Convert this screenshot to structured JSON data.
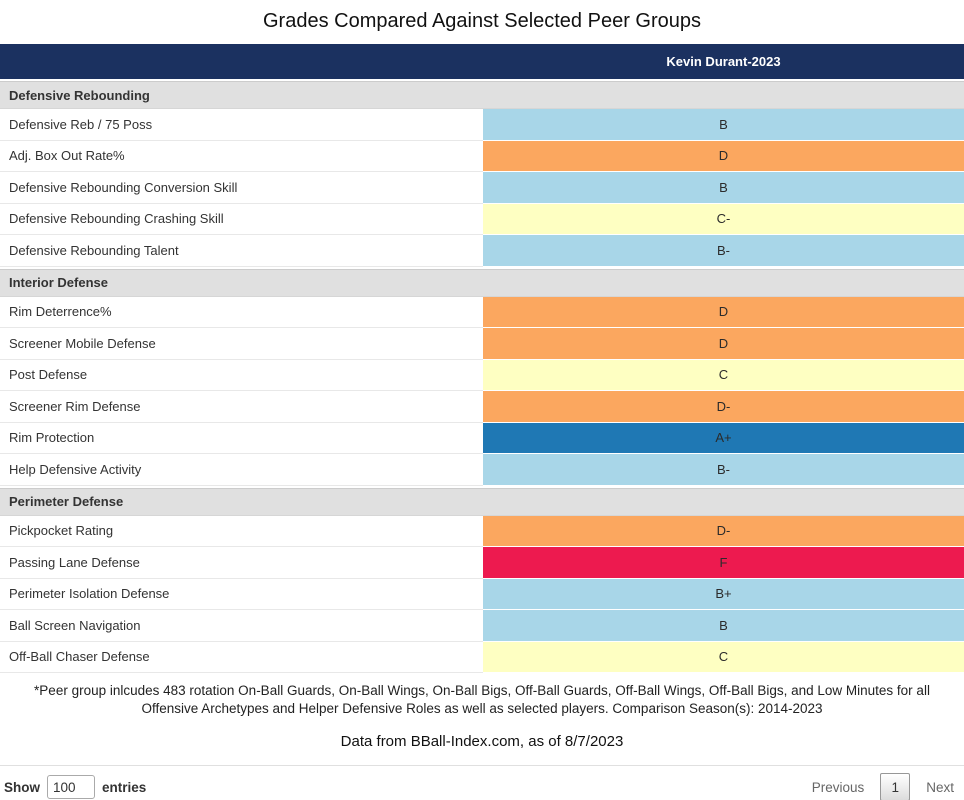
{
  "title": "Grades Compared Against Selected Peer Groups",
  "table": {
    "column_header": "Kevin Durant-2023",
    "sections": [
      {
        "label": "Defensive Rebounding",
        "rows": [
          {
            "label": "Defensive Reb / 75 Poss",
            "grade": "B",
            "color": "#a8d6e8"
          },
          {
            "label": "Adj. Box Out Rate%",
            "grade": "D",
            "color": "#fba75f"
          },
          {
            "label": "Defensive Rebounding Conversion Skill",
            "grade": "B",
            "color": "#a8d6e8"
          },
          {
            "label": "Defensive Rebounding Crashing Skill",
            "grade": "C-",
            "color": "#feffc2"
          },
          {
            "label": "Defensive Rebounding Talent",
            "grade": "B-",
            "color": "#a8d6e8"
          }
        ]
      },
      {
        "label": "Interior Defense",
        "rows": [
          {
            "label": "Rim Deterrence%",
            "grade": "D",
            "color": "#fba75f"
          },
          {
            "label": "Screener Mobile Defense",
            "grade": "D",
            "color": "#fba75f"
          },
          {
            "label": "Post Defense",
            "grade": "C",
            "color": "#feffc2"
          },
          {
            "label": "Screener Rim Defense",
            "grade": "D-",
            "color": "#fba75f"
          },
          {
            "label": "Rim Protection",
            "grade": "A+",
            "color": "#1f78b4"
          },
          {
            "label": "Help Defensive Activity",
            "grade": "B-",
            "color": "#a8d6e8"
          }
        ]
      },
      {
        "label": "Perimeter Defense",
        "rows": [
          {
            "label": "Pickpocket Rating",
            "grade": "D-",
            "color": "#fba75f"
          },
          {
            "label": "Passing Lane Defense",
            "grade": "F",
            "color": "#ed1a4f"
          },
          {
            "label": "Perimeter Isolation Defense",
            "grade": "B+",
            "color": "#a8d6e8"
          },
          {
            "label": "Ball Screen Navigation",
            "grade": "B",
            "color": "#a8d6e8"
          },
          {
            "label": "Off-Ball Chaser Defense",
            "grade": "C",
            "color": "#feffc2"
          }
        ]
      }
    ]
  },
  "footnote": "*Peer group inlcudes 483 rotation On-Ball Guards, On-Ball Wings, On-Ball Bigs, Off-Ball Guards, Off-Ball Wings, Off-Ball Bigs, and Low Minutes for all Offensive Archetypes and Helper Defensive Roles as well as selected players. Comparison Season(s): 2014-2023",
  "attribution": "Data from BBall-Index.com, as of 8/7/2023",
  "controls": {
    "show_label": "Show",
    "entries_value": "100",
    "entries_label": "entries"
  },
  "pagination": {
    "previous_label": "Previous",
    "current_page": "1",
    "next_label": "Next"
  },
  "colors": {
    "header_bg": "#1b3160",
    "section_bg": "#e0e0e0",
    "grade_a": "#1f78b4",
    "grade_b": "#a8d6e8",
    "grade_c": "#feffc2",
    "grade_d": "#fba75f",
    "grade_f": "#ed1a4f"
  }
}
